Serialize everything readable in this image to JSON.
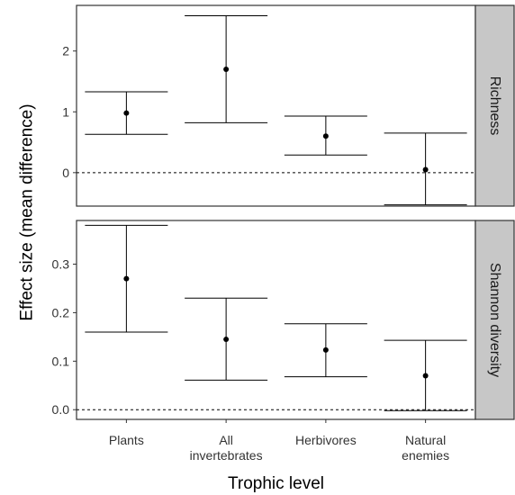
{
  "chart_data": {
    "type": "errorbar",
    "xlabel": "Trophic level",
    "ylabel": "Effect size (mean difference)",
    "categories": [
      [
        "Plants"
      ],
      [
        "All",
        "invertebrates"
      ],
      [
        "Herbivores"
      ],
      [
        "Natural",
        "enemies"
      ]
    ],
    "facets": [
      {
        "strip": "Richness",
        "ylim": [
          -0.55,
          2.75
        ],
        "yticks": [
          0,
          1,
          2
        ],
        "ytick_labels": [
          "0",
          "1",
          "2"
        ],
        "reference_line": 0,
        "points": [
          {
            "category": "Plants",
            "mean": 0.98,
            "lower": 0.63,
            "upper": 1.33
          },
          {
            "category": "All invertebrates",
            "mean": 1.7,
            "lower": 0.82,
            "upper": 2.58
          },
          {
            "category": "Herbivores",
            "mean": 0.6,
            "lower": 0.29,
            "upper": 0.93
          },
          {
            "category": "Natural enemies",
            "mean": 0.05,
            "lower": -0.53,
            "upper": 0.65
          }
        ]
      },
      {
        "strip": "Shannon diversity",
        "ylim": [
          -0.02,
          0.39
        ],
        "yticks": [
          0.0,
          0.1,
          0.2,
          0.3
        ],
        "ytick_labels": [
          "0.0",
          "0.1",
          "0.2",
          "0.3"
        ],
        "reference_line": 0,
        "points": [
          {
            "category": "Plants",
            "mean": 0.27,
            "lower": 0.16,
            "upper": 0.38
          },
          {
            "category": "All invertebrates",
            "mean": 0.145,
            "lower": 0.061,
            "upper": 0.23
          },
          {
            "category": "Herbivores",
            "mean": 0.123,
            "lower": 0.068,
            "upper": 0.177
          },
          {
            "category": "Natural enemies",
            "mean": 0.07,
            "lower": -0.002,
            "upper": 0.143
          }
        ]
      }
    ],
    "grid": false,
    "colors": {
      "strip_bg": "#c7c7c7",
      "ink": "#000000",
      "panel_border": "#333333"
    }
  }
}
